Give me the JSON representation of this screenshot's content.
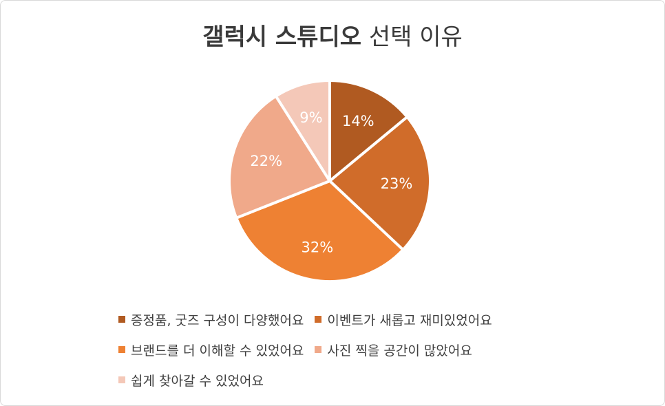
{
  "chart_data": {
    "type": "pie",
    "title_bold": "갤럭시 스튜디오",
    "title_rest": "선택 이유",
    "slices": [
      {
        "label": "증정품, 굿즈 구성이 다양했어요",
        "value": 14,
        "display": "14%",
        "color": "#B05A21"
      },
      {
        "label": "이벤트가 새롭고 재미있었어요",
        "value": 23,
        "display": "23%",
        "color": "#D06C2A"
      },
      {
        "label": "브랜드를 더 이해할 수 있었어요",
        "value": 32,
        "display": "32%",
        "color": "#EE8133"
      },
      {
        "label": "사진 찍을 공간이 많았어요",
        "value": 22,
        "display": "22%",
        "color": "#F0A98A"
      },
      {
        "label": "쉽게 찾아갈 수 있었어요",
        "value": 9,
        "display": "9%",
        "color": "#F4C8B8"
      }
    ],
    "legend_position": "bottom"
  }
}
